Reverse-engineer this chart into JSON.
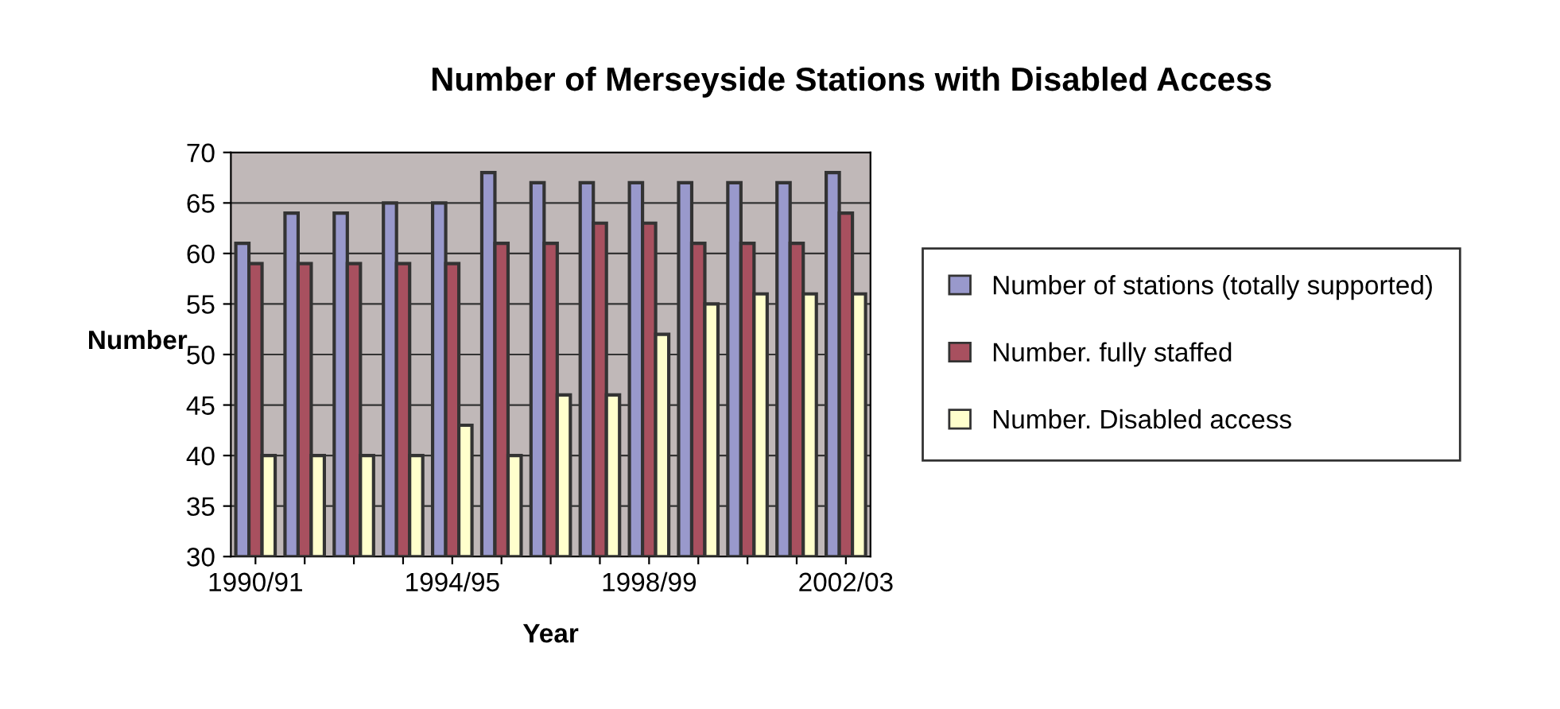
{
  "chart_data": {
    "type": "bar",
    "title": "Number of Merseyside Stations with Disabled Access",
    "xlabel": "Year",
    "ylabel": "Number",
    "categories": [
      "1990/91",
      null,
      null,
      null,
      "1994/95",
      null,
      null,
      null,
      "1998/99",
      null,
      null,
      null,
      "2002/03"
    ],
    "series": [
      {
        "name": "Number of stations (totally supported)",
        "color": "#9999cc",
        "values": [
          61,
          64,
          64,
          65,
          65,
          68,
          67,
          67,
          67,
          67,
          67,
          67,
          68
        ]
      },
      {
        "name": "Number. fully staffed",
        "color": "#a8505f",
        "values": [
          59,
          59,
          59,
          59,
          59,
          61,
          61,
          63,
          63,
          61,
          61,
          61,
          64
        ]
      },
      {
        "name": "Number. Disabled access",
        "color": "#ffffcc",
        "values": [
          40,
          40,
          40,
          40,
          43,
          40,
          46,
          46,
          52,
          55,
          56,
          56,
          56
        ]
      }
    ],
    "ylim": [
      30,
      70
    ],
    "yticks": [
      30,
      35,
      40,
      45,
      50,
      55,
      60,
      65,
      70
    ],
    "grid": "y",
    "legend": "right"
  }
}
